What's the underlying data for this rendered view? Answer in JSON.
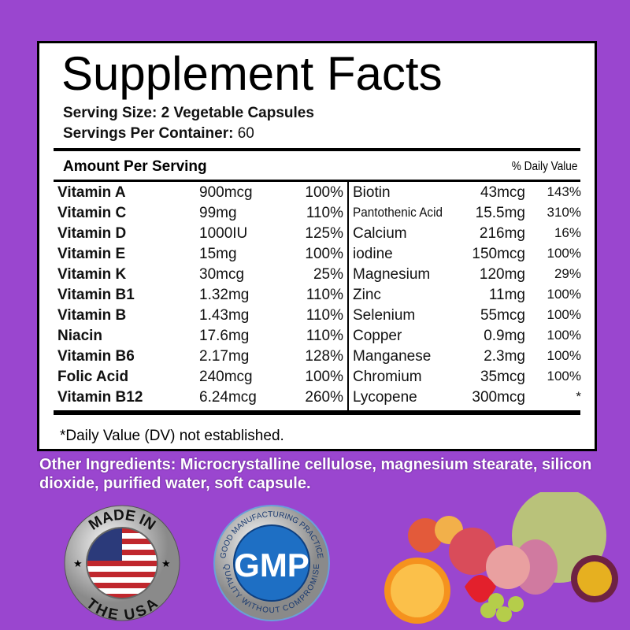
{
  "label": {
    "title": "Supplement Facts",
    "serving_size_label": "Serving Size:",
    "serving_size_value": "2 Vegetable Capsules",
    "servings_label": "Servings Per Container:",
    "servings_value": "60",
    "amount_header": "Amount Per Serving",
    "dv_header": "% Daily Value",
    "left_rows": [
      {
        "name": "Vitamin A",
        "amount": "900mcg",
        "dv": "100%"
      },
      {
        "name": "Vitamin C",
        "amount": "99mg",
        "dv": "110%"
      },
      {
        "name": "Vitamin D",
        "amount": "1000IU",
        "dv": "125%"
      },
      {
        "name": "Vitamin E",
        "amount": "15mg",
        "dv": "100%"
      },
      {
        "name": "Vitamin K",
        "amount": "30mcg",
        "dv": "25%"
      },
      {
        "name": "Vitamin B1",
        "amount": "1.32mg",
        "dv": "110%"
      },
      {
        "name": "Vitamin B",
        "amount": "1.43mg",
        "dv": "110%"
      },
      {
        "name": "Niacin",
        "amount": "17.6mg",
        "dv": "110%"
      },
      {
        "name": "Vitamin B6",
        "amount": "2.17mg",
        "dv": "128%"
      },
      {
        "name": "Folic Acid",
        "amount": "240mcg",
        "dv": "100%"
      },
      {
        "name": "Vitamin B12",
        "amount": "6.24mcg",
        "dv": "260%"
      }
    ],
    "right_rows": [
      {
        "name": "Biotin",
        "amount": "43mcg",
        "dv": "143%"
      },
      {
        "name": "Pantothenic Acid",
        "amount": "15.5mg",
        "dv": "310%"
      },
      {
        "name": "Calcium",
        "amount": "216mg",
        "dv": "16%"
      },
      {
        "name": "iodine",
        "amount": "150mcg",
        "dv": "100%"
      },
      {
        "name": "Magnesium",
        "amount": "120mg",
        "dv": "29%"
      },
      {
        "name": "Zinc",
        "amount": "11mg",
        "dv": "100%"
      },
      {
        "name": "Selenium",
        "amount": "55mcg",
        "dv": "100%"
      },
      {
        "name": "Copper",
        "amount": "0.9mg",
        "dv": "100%"
      },
      {
        "name": "Manganese",
        "amount": "2.3mg",
        "dv": "100%"
      },
      {
        "name": "Chromium",
        "amount": "35mcg",
        "dv": "100%"
      },
      {
        "name": "Lycopene",
        "amount": "300mcg",
        "dv": "*"
      }
    ],
    "footnote": "*Daily Value (DV) not established."
  },
  "other_ingredients": "Other Ingredients: Microcrystalline cellulose, magnesium stearate, silicon dioxide, purified water, soft capsule.",
  "badges": {
    "usa_top": "MADE IN",
    "usa_bottom": "THE USA",
    "gmp_center": "GMP",
    "gmp_top": "GOOD MANUFACTURING PRACTICE",
    "gmp_bottom": "QUALITY WITHOUT COMPROMISE"
  },
  "colors": {
    "background": "#9a46cf",
    "gmp_blue": "#1e6fc4"
  }
}
